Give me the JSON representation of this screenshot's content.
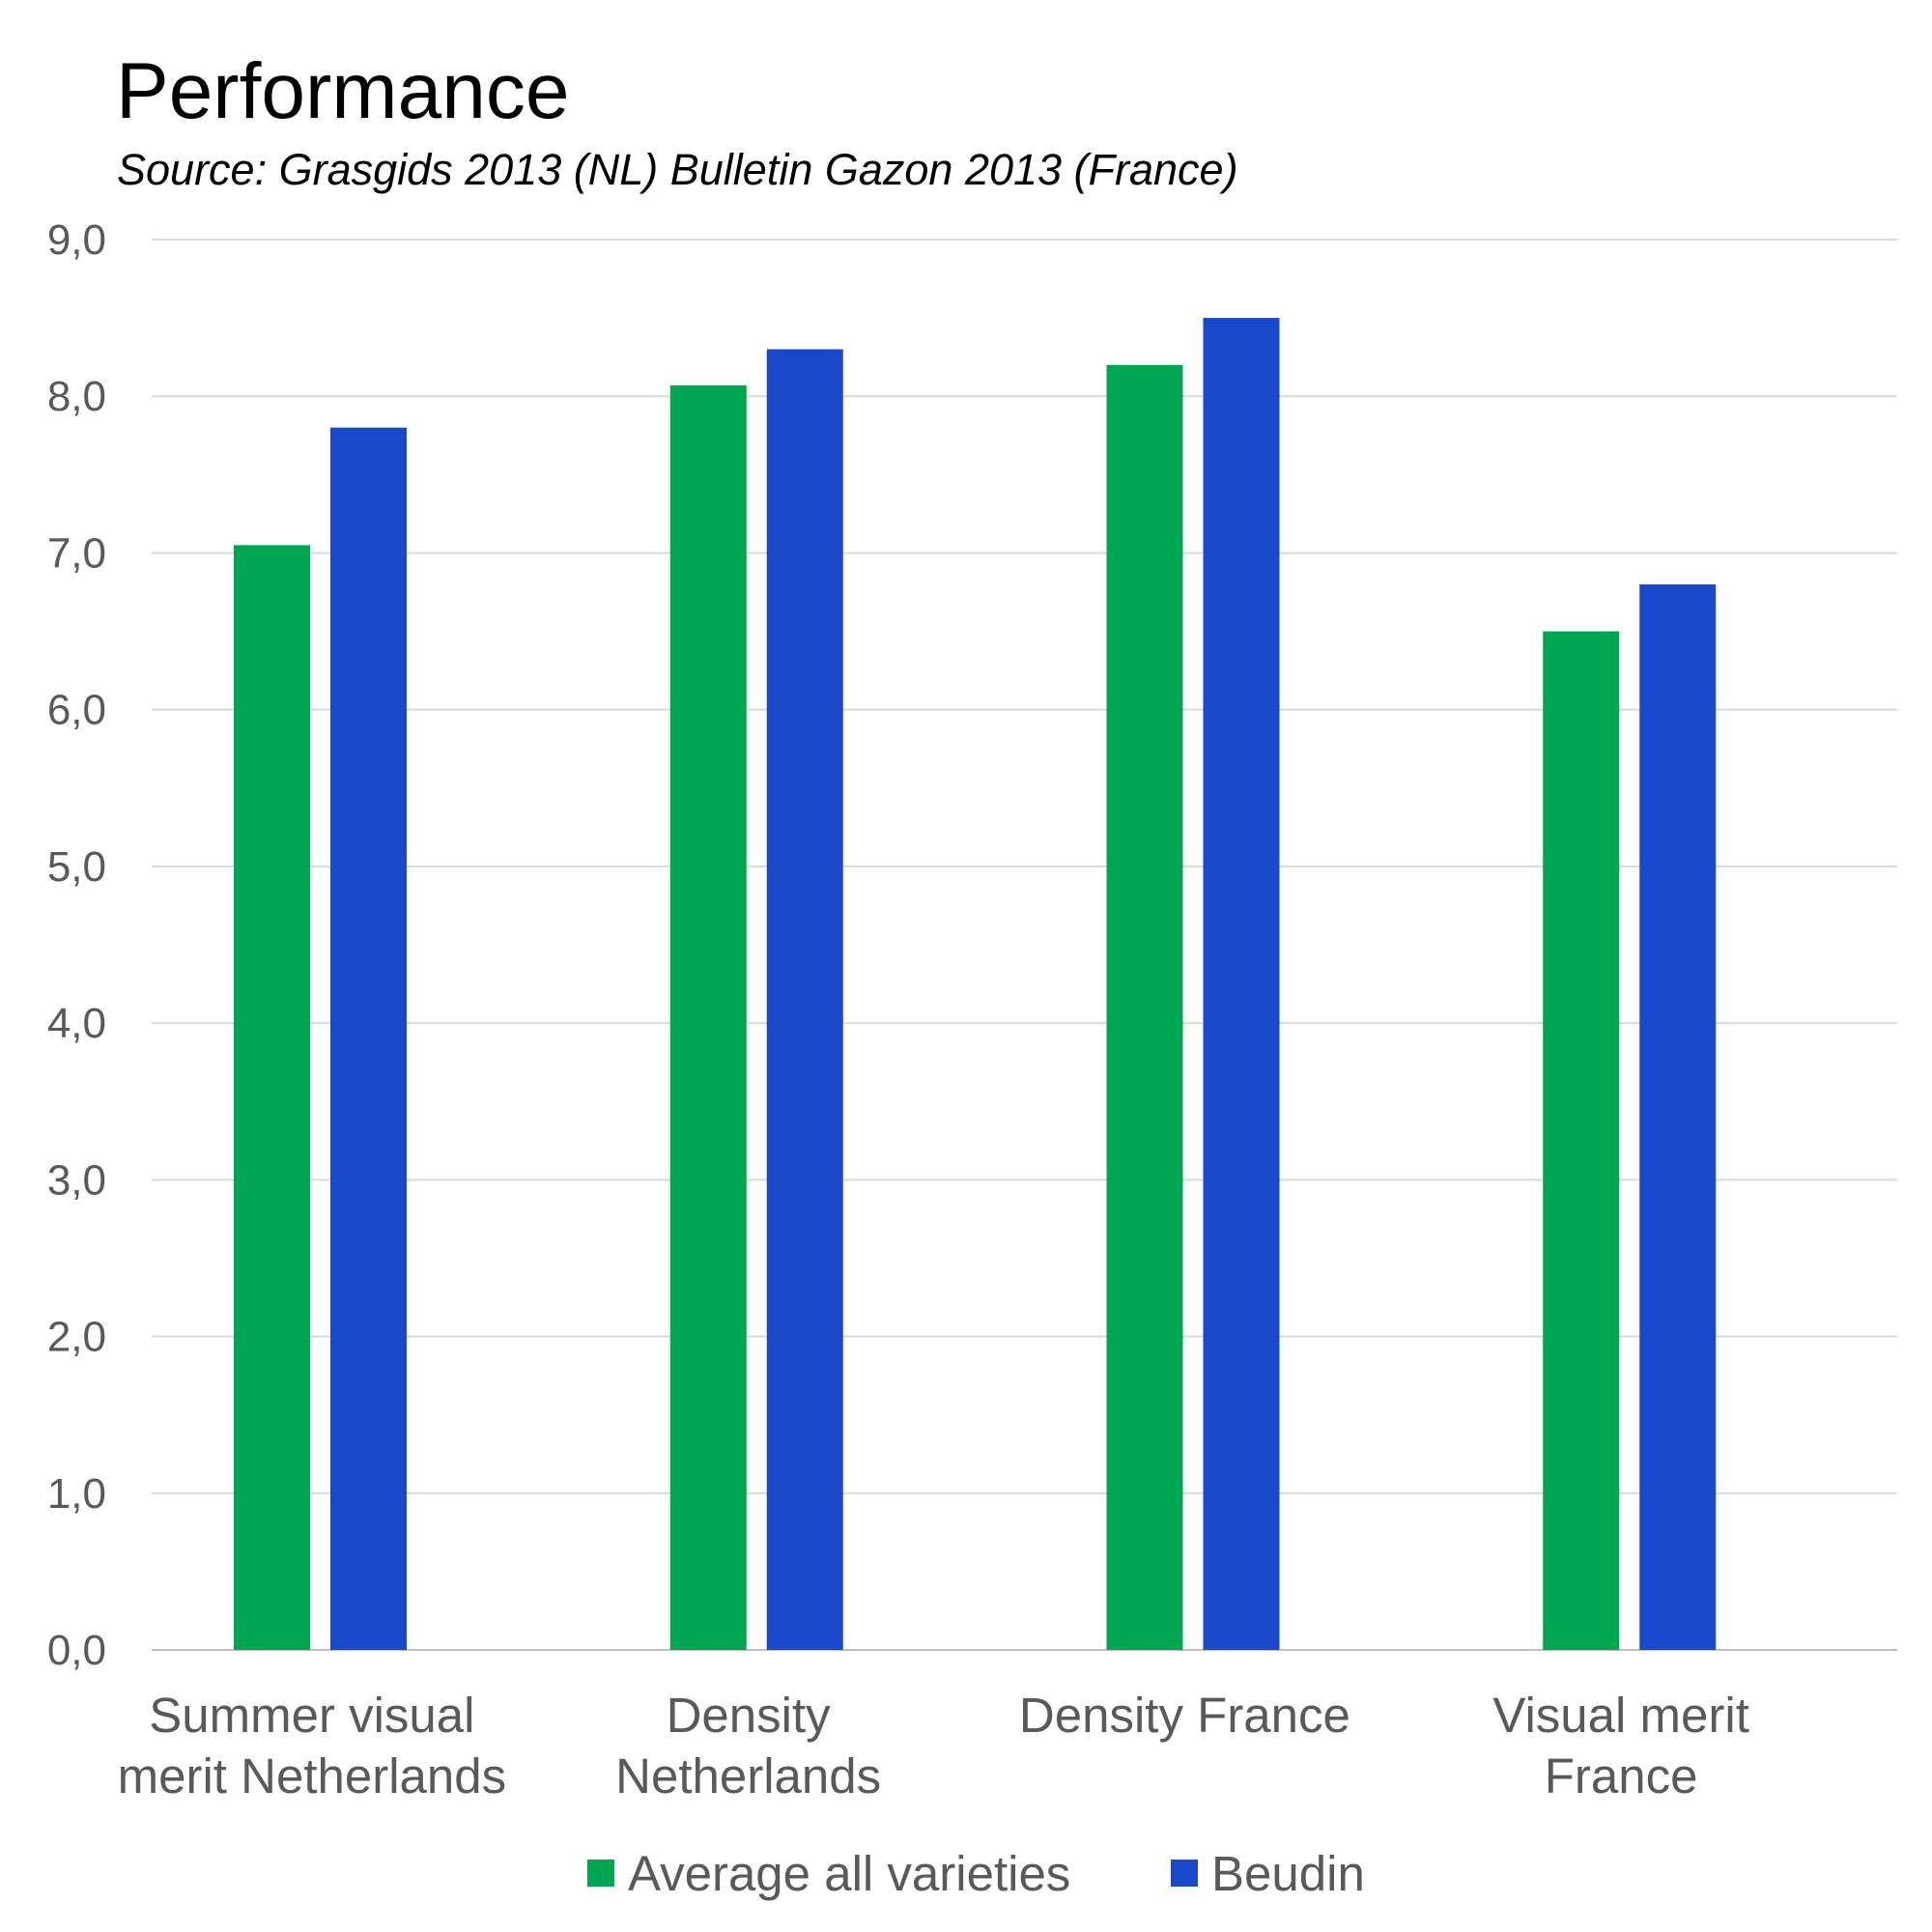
{
  "chart_data": {
    "type": "bar",
    "title": "Performance",
    "subtitle": "Source: Grasgids 2013 (NL) Bulletin Gazon 2013 (France)",
    "xlabel": "",
    "ylabel": "",
    "ylim": [
      0,
      9
    ],
    "yticks": [
      "0,0",
      "1,0",
      "2,0",
      "3,0",
      "4,0",
      "5,0",
      "6,0",
      "7,0",
      "8,0",
      "9,0"
    ],
    "grid": true,
    "legend_position": "bottom",
    "categories": [
      [
        "Summer visual",
        "merit Netherlands"
      ],
      [
        "Density",
        "Netherlands"
      ],
      [
        "Density France"
      ],
      [
        "Visual merit",
        "France"
      ]
    ],
    "series": [
      {
        "name": "Average all varieties",
        "color": "#00A651",
        "values": [
          7.05,
          8.07,
          8.2,
          6.5
        ]
      },
      {
        "name": "Beudin",
        "color": "#1A48CB",
        "values": [
          7.8,
          8.3,
          8.5,
          6.8
        ]
      }
    ]
  }
}
